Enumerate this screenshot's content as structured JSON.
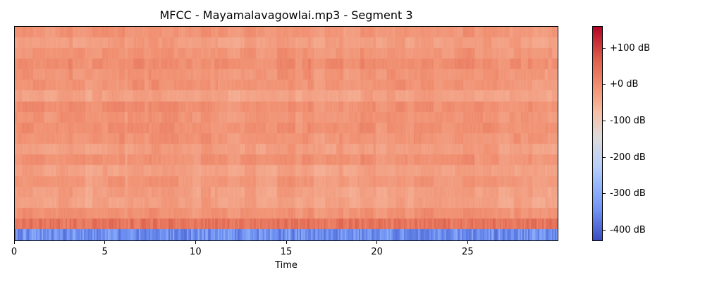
{
  "chart_data": {
    "type": "heatmap",
    "title": "MFCC - Mayamalavagowlai.mp3 - Segment 3",
    "xlabel": "Time",
    "ylabel": "",
    "xlim": [
      0,
      30
    ],
    "n_coefficients": 20,
    "x_ticks": [
      {
        "value": 0,
        "label": "0"
      },
      {
        "value": 5,
        "label": "5"
      },
      {
        "value": 10,
        "label": "10"
      },
      {
        "value": 15,
        "label": "15"
      },
      {
        "value": 20,
        "label": "20"
      },
      {
        "value": 25,
        "label": "25"
      }
    ],
    "colorbar": {
      "range": [
        -430,
        160
      ],
      "colormap": "coolwarm",
      "ticks": [
        {
          "value": 100,
          "label": "+100 dB"
        },
        {
          "value": 0,
          "label": "+0 dB"
        },
        {
          "value": -100,
          "label": "-100 dB"
        },
        {
          "value": -200,
          "label": "-200 dB"
        },
        {
          "value": -300,
          "label": "-300 dB"
        },
        {
          "value": -400,
          "label": "-400 dB"
        }
      ]
    },
    "coefficient_levels": {
      "coef_0_mean_db": -290,
      "coef_1_mean_db": 70,
      "coef_2_to_19_mean_db": 15
    }
  }
}
